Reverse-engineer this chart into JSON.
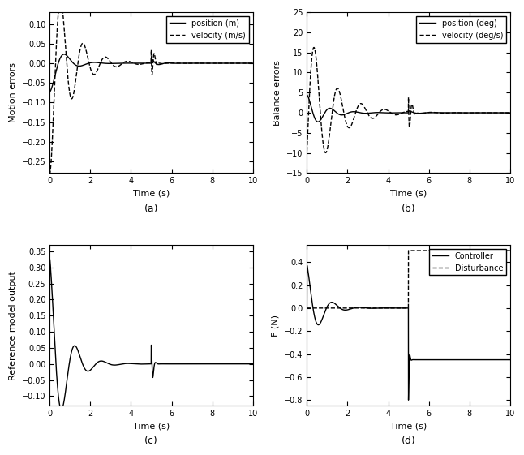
{
  "fig_width": 6.46,
  "fig_height": 5.61,
  "dpi": 100,
  "background_color": "#ffffff",
  "subplots": {
    "a": {
      "title": "(a)",
      "xlabel": "Time (s)",
      "ylabel": "Motion errors",
      "xlim": [
        0,
        10
      ],
      "ylim": [
        -0.28,
        0.13
      ],
      "yticks": [
        -0.25,
        -0.2,
        -0.15,
        -0.1,
        -0.05,
        0,
        0.05,
        0.1
      ],
      "xticks": [
        0,
        2,
        4,
        6,
        8,
        10
      ],
      "legend": [
        "position (m)",
        "velocity (m/s)"
      ]
    },
    "b": {
      "title": "(b)",
      "xlabel": "Time (s)",
      "ylabel": "Balance errors",
      "xlim": [
        0,
        10
      ],
      "ylim": [
        -15,
        25
      ],
      "yticks": [
        -15,
        -10,
        -5,
        0,
        5,
        10,
        15,
        20,
        25
      ],
      "xticks": [
        0,
        2,
        4,
        6,
        8,
        10
      ],
      "legend": [
        "position (deg)",
        "velocity (deg/s)"
      ]
    },
    "c": {
      "title": "(c)",
      "xlabel": "Time (s)",
      "ylabel": "Reference model output",
      "xlim": [
        0,
        10
      ],
      "ylim": [
        -0.13,
        0.37
      ],
      "yticks": [
        -0.1,
        -0.05,
        0,
        0.05,
        0.1,
        0.15,
        0.2,
        0.25,
        0.3,
        0.35
      ],
      "xticks": [
        0,
        2,
        4,
        6,
        8,
        10
      ]
    },
    "d": {
      "title": "(d)",
      "xlabel": "Time (s)",
      "ylabel": "F (N)",
      "xlim": [
        0,
        10
      ],
      "ylim": [
        -0.85,
        0.55
      ],
      "yticks": [
        -0.8,
        -0.6,
        -0.4,
        -0.2,
        0,
        0.2,
        0.4
      ],
      "xticks": [
        0,
        2,
        4,
        6,
        8,
        10
      ],
      "legend": [
        "Controller",
        "Disturbance"
      ]
    }
  },
  "disturbance_time": 5.0,
  "line_color": "#000000"
}
